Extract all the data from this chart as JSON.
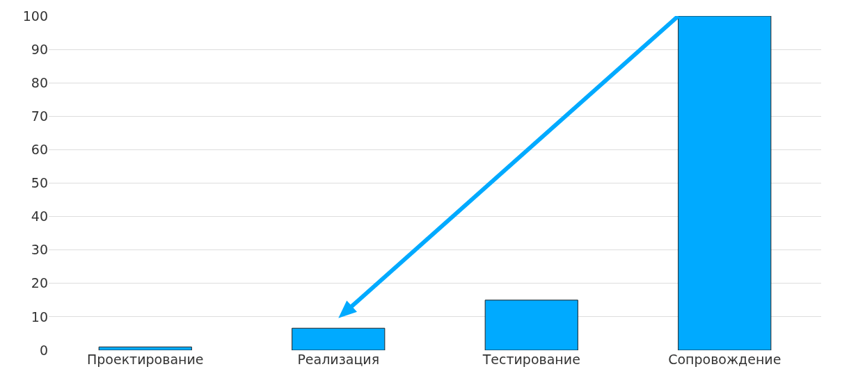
{
  "chart_data": {
    "type": "bar",
    "categories": [
      "Проектирование",
      "Реализация",
      "Тестирование",
      "Сопровождение"
    ],
    "values": [
      1,
      6.6,
      15,
      100
    ],
    "color": "#00aaff",
    "ylim": [
      0,
      100
    ],
    "yticks": [
      0,
      10,
      20,
      30,
      40,
      50,
      60,
      70,
      80,
      90,
      100
    ],
    "grid": "y"
  }
}
